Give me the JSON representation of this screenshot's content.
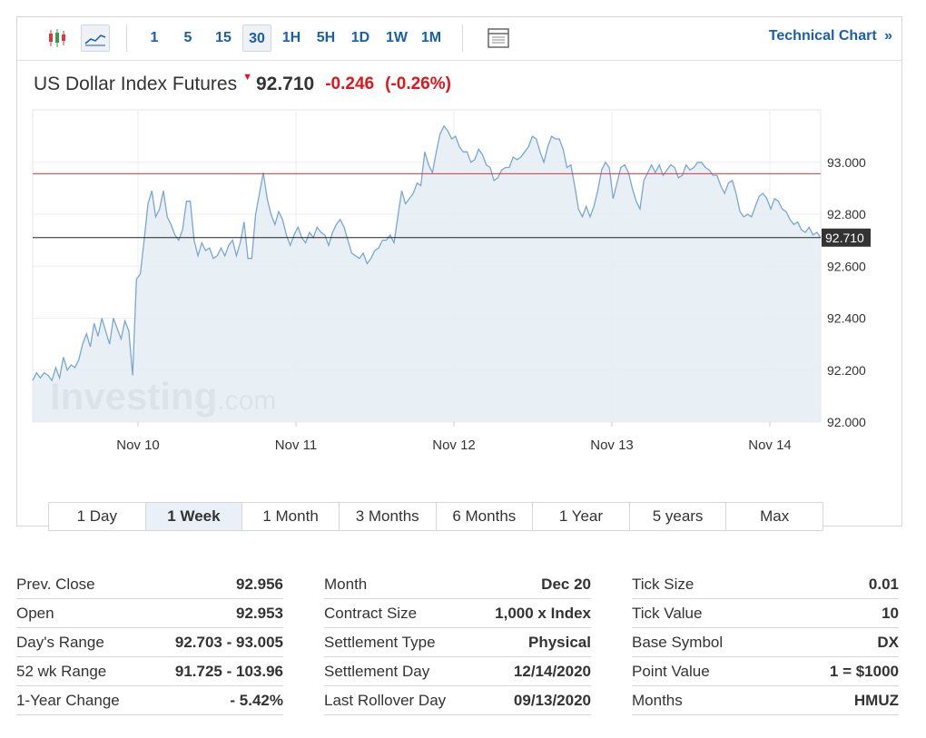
{
  "toolbar": {
    "intervals": [
      "1",
      "5",
      "15",
      "30",
      "1H",
      "5H",
      "1D",
      "1W",
      "1M"
    ],
    "active_interval": "30",
    "technical_chart_label": "Technical Chart",
    "technical_chart_arrow": "»"
  },
  "header": {
    "name": "US Dollar Index Futures",
    "direction_arrow": "▼",
    "price": "92.710",
    "change": "-0.246",
    "change_pct": "(-0.26%)",
    "down_color": "#e0161b"
  },
  "watermark": {
    "brand": "Investing",
    "suffix": ".com"
  },
  "chart_data": {
    "type": "area",
    "x_labels": [
      "Nov 10",
      "Nov 11",
      "Nov 12",
      "Nov 13",
      "Nov 14"
    ],
    "y_ticks": [
      "93.000",
      "92.800",
      "92.600",
      "92.400",
      "92.200",
      "92.000"
    ],
    "ylim": [
      92.0,
      93.2
    ],
    "prev_close": 92.956,
    "last_price_label": "92.710",
    "last_price": 92.71,
    "line_color": "#79a7d3",
    "fill_color": "#e4edf5",
    "prev_close_color": "#d9363e",
    "grid": true,
    "series": [
      {
        "values": [
          92.16,
          92.19,
          92.17,
          92.19,
          92.18,
          92.16,
          92.21,
          92.17,
          92.25,
          92.2,
          92.22,
          92.21,
          92.24,
          92.3,
          92.34,
          92.29,
          92.38,
          92.33,
          92.4,
          92.35,
          92.3,
          92.4,
          92.36,
          92.32,
          92.39,
          92.35,
          92.18,
          92.55,
          92.57,
          92.7,
          92.84,
          92.89,
          92.79,
          92.82,
          92.89,
          92.79,
          92.76,
          92.72,
          92.7,
          92.74,
          92.85,
          92.85,
          92.7,
          92.64,
          92.69,
          92.66,
          92.67,
          92.63,
          92.64,
          92.67,
          92.64,
          92.68,
          92.7,
          92.64,
          92.69,
          92.77,
          92.63,
          92.63,
          92.8,
          92.88,
          92.96,
          92.86,
          92.8,
          92.76,
          92.81,
          92.78,
          92.72,
          92.68,
          92.72,
          92.75,
          92.71,
          92.69,
          92.73,
          92.71,
          92.75,
          92.73,
          92.72,
          92.68,
          92.73,
          92.76,
          92.78,
          92.75,
          92.7,
          92.65,
          92.64,
          92.63,
          92.65,
          92.61,
          92.63,
          92.66,
          92.67,
          92.7,
          92.7,
          92.72,
          92.69,
          92.79,
          92.89,
          92.84,
          92.86,
          92.88,
          92.92,
          92.91,
          93.04,
          92.99,
          92.96,
          93.04,
          93.11,
          93.14,
          93.12,
          93.09,
          93.1,
          93.06,
          93.04,
          93.04,
          93.0,
          93.01,
          93.05,
          93.03,
          92.99,
          92.98,
          92.93,
          92.94,
          92.97,
          92.98,
          92.98,
          93.02,
          93.01,
          93.02,
          93.04,
          93.06,
          93.1,
          93.09,
          93.04,
          93.0,
          93.06,
          93.1,
          93.09,
          93.09,
          93.05,
          92.98,
          92.99,
          92.91,
          92.82,
          92.79,
          92.83,
          92.79,
          92.83,
          92.89,
          92.97,
          93.0,
          92.98,
          92.86,
          92.92,
          92.98,
          92.99,
          92.96,
          92.9,
          92.85,
          92.82,
          92.93,
          92.96,
          92.99,
          92.96,
          92.99,
          92.95,
          92.97,
          92.99,
          92.98,
          92.94,
          92.95,
          92.99,
          92.97,
          92.98,
          93.0,
          93.0,
          92.98,
          92.97,
          92.95,
          92.95,
          92.91,
          92.88,
          92.92,
          92.93,
          92.88,
          92.81,
          92.79,
          92.8,
          92.79,
          92.83,
          92.87,
          92.88,
          92.86,
          92.82,
          92.86,
          92.85,
          92.82,
          92.81,
          92.78,
          92.76,
          92.77,
          92.74,
          92.73,
          92.75,
          92.72,
          92.73,
          92.71
        ]
      }
    ]
  },
  "range_tabs": [
    "1 Day",
    "1 Week",
    "1 Month",
    "3 Months",
    "6 Months",
    "1 Year",
    "5 years",
    "Max"
  ],
  "active_range": "1 Week",
  "stats": [
    [
      {
        "label": "Prev. Close",
        "value": "92.956"
      },
      {
        "label": "Open",
        "value": "92.953"
      },
      {
        "label": "Day's Range",
        "value": "92.703 - 93.005"
      },
      {
        "label": "52 wk Range",
        "value": "91.725 - 103.96"
      },
      {
        "label": "1-Year Change",
        "value": "- 5.42%"
      }
    ],
    [
      {
        "label": "Month",
        "value": "Dec 20"
      },
      {
        "label": "Contract Size",
        "value": "1,000 x Index"
      },
      {
        "label": "Settlement Type",
        "value": "Physical"
      },
      {
        "label": "Settlement Day",
        "value": "12/14/2020"
      },
      {
        "label": "Last Rollover Day",
        "value": "09/13/2020"
      }
    ],
    [
      {
        "label": "Tick Size",
        "value": "0.01"
      },
      {
        "label": "Tick Value",
        "value": "10"
      },
      {
        "label": "Base Symbol",
        "value": "DX"
      },
      {
        "label": "Point Value",
        "value": "1 = $1000"
      },
      {
        "label": "Months",
        "value": "HMUZ"
      }
    ]
  ]
}
